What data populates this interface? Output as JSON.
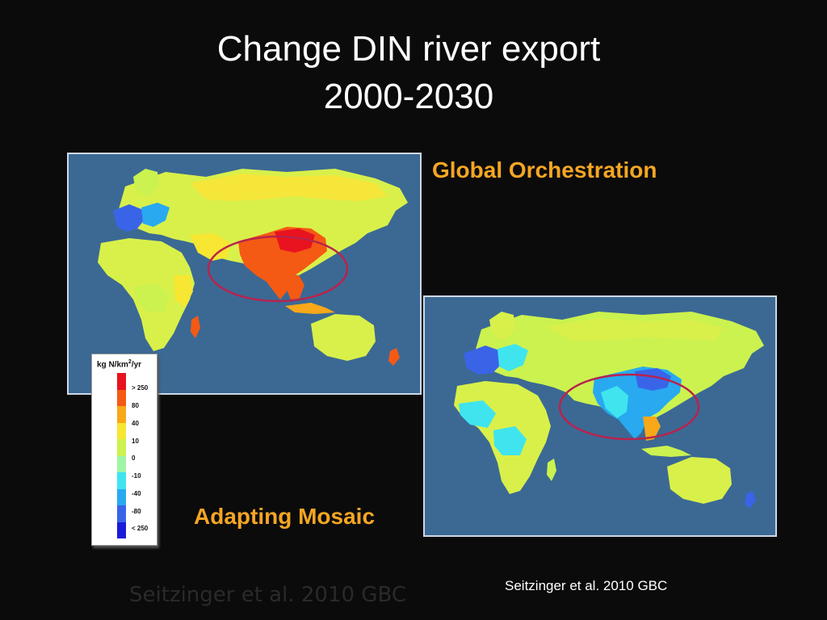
{
  "title_line1": "Change DIN river export",
  "title_line2": "2000-2030",
  "scenarios": {
    "top": "Global Orchestration",
    "bottom": "Adapting Mosaic"
  },
  "legend": {
    "unit_prefix": "kg N/km",
    "unit_exp": "2",
    "unit_suffix": "/yr",
    "ticks": [
      "> 250",
      "80",
      "40",
      "10",
      "0",
      "-10",
      "-40",
      "-80",
      "< 250"
    ],
    "colors": [
      "#e8131f",
      "#f45a14",
      "#f8a818",
      "#f7e632",
      "#cbf24f",
      "#9ff5a6",
      "#3fe4ef",
      "#28a9f0",
      "#3a64e8",
      "#1b1bd8"
    ]
  },
  "colors": {
    "ocean": "#3b6994",
    "highlight_ring": "#b8234d",
    "scenario_label": "#f5a623"
  },
  "citation": "Seitzinger et al. 2010 GBC",
  "citation_faint": "Seitzinger et al. 2010 GBC"
}
